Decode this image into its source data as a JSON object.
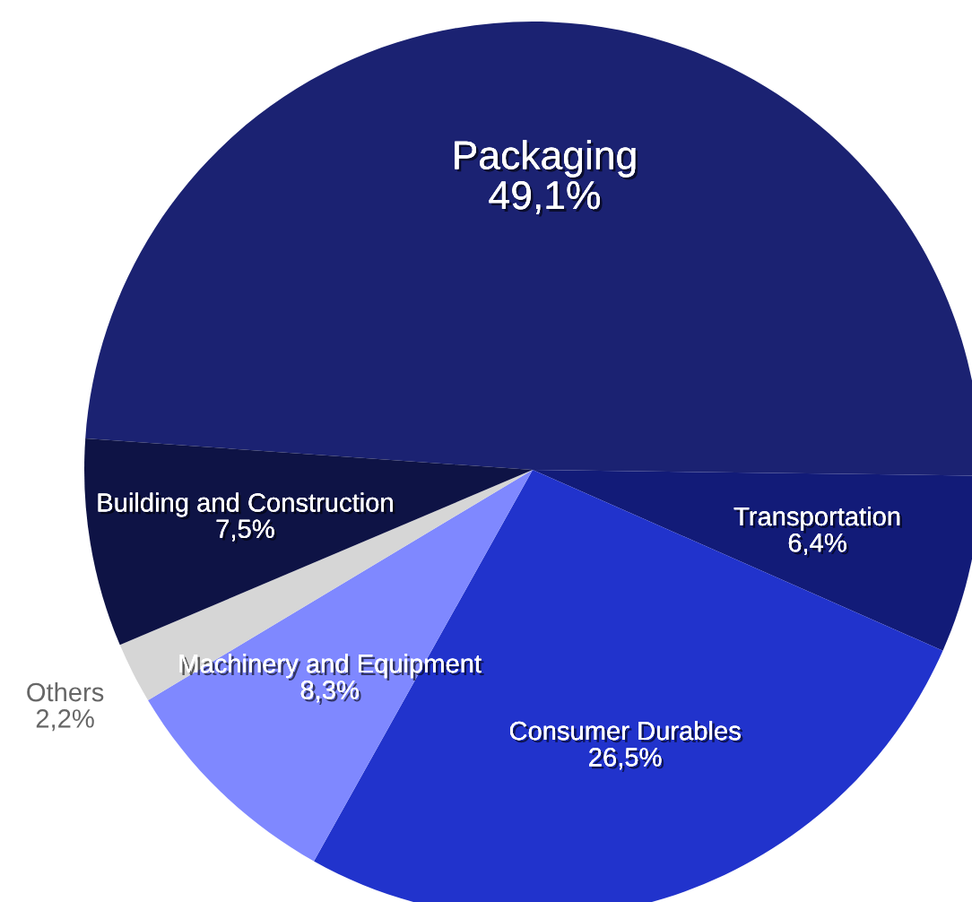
{
  "chart_data": {
    "type": "pie",
    "categories": [
      "Packaging",
      "Transportation",
      "Consumer Durables",
      "Machinery and Equipment",
      "Others",
      "Building and Construction"
    ],
    "values": [
      49.1,
      6.4,
      26.5,
      8.3,
      2.2,
      7.5
    ],
    "value_labels": [
      "49,1%",
      "6,4%",
      "26,5%",
      "8,3%",
      "2,2%",
      "7,5%"
    ],
    "colors": [
      "#1b2272",
      "#121b78",
      "#2133cc",
      "#7f88ff",
      "#d6d6d6",
      "#0e1345"
    ]
  }
}
